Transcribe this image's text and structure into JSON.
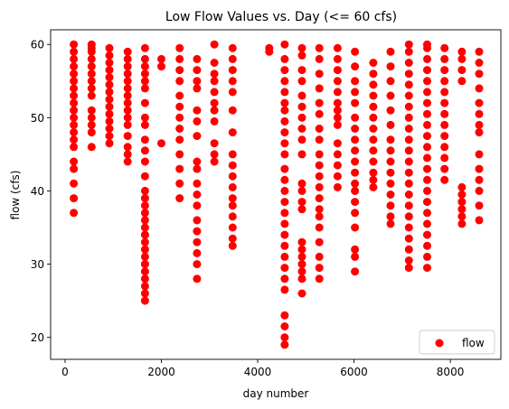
{
  "chart_data": {
    "type": "scatter",
    "title": "Low Flow Values vs. Day (<= 60 cfs)",
    "xlabel": "day number",
    "ylabel": "flow (cfs)",
    "xlim": [
      -300,
      9050
    ],
    "ylim": [
      17,
      62
    ],
    "x_ticks": [
      0,
      2000,
      4000,
      6000,
      8000
    ],
    "x_tick_labels": [
      "0",
      "2000",
      "4000",
      "6000",
      "8000"
    ],
    "y_ticks": [
      20,
      30,
      40,
      50,
      60
    ],
    "y_tick_labels": [
      "20",
      "30",
      "40",
      "50",
      "60"
    ],
    "grid": false,
    "legend": {
      "placement": "lower-right",
      "entries": [
        "flow"
      ]
    },
    "marker_color": "#ff0000",
    "series": [
      {
        "name": "flow",
        "columns": [
          {
            "x": 180,
            "y": [
              37,
              39,
              41,
              43,
              44,
              46,
              47,
              48,
              49,
              50,
              51,
              52,
              53,
              54,
              55,
              56,
              57,
              58,
              59,
              60
            ]
          },
          {
            "x": 550,
            "y": [
              46,
              48,
              49,
              50,
              51,
              53,
              54,
              55,
              56,
              57,
              58,
              59,
              59.5,
              60
            ]
          },
          {
            "x": 920,
            "y": [
              46.5,
              47.5,
              48.5,
              49.5,
              50.5,
              51.5,
              52.5,
              53.5,
              54.5,
              55.5,
              56.5,
              57.5,
              58.5,
              59.5
            ]
          },
          {
            "x": 1300,
            "y": [
              44,
              45,
              46,
              47.5,
              49,
              50,
              51,
              52,
              53,
              54,
              55,
              56,
              57,
              58,
              59
            ]
          },
          {
            "x": 1660,
            "y": [
              25,
              26,
              27,
              28,
              29,
              30,
              31,
              32,
              33,
              34,
              35,
              36,
              37,
              38,
              39,
              40,
              42,
              44,
              45.5,
              47,
              49,
              50,
              52,
              54,
              55,
              56,
              57,
              58,
              59.5
            ]
          },
          {
            "x": 2000,
            "y": [
              46.5,
              57,
              58
            ]
          },
          {
            "x": 2380,
            "y": [
              39,
              41,
              43,
              45,
              47,
              48.5,
              50,
              51.5,
              53,
              55,
              56.5,
              58,
              59.5
            ]
          },
          {
            "x": 2740,
            "y": [
              28,
              30,
              31.5,
              33,
              34.5,
              36,
              38,
              39.5,
              41,
              43,
              44,
              47.5,
              49.5,
              51,
              54,
              55,
              56.5,
              58
            ]
          },
          {
            "x": 3100,
            "y": [
              44,
              45,
              46.5,
              49.5,
              51,
              52,
              53.5,
              55,
              56,
              57.5,
              60
            ]
          },
          {
            "x": 3480,
            "y": [
              32.5,
              33.5,
              35,
              36.5,
              38,
              39,
              40.5,
              42,
              43.5,
              45,
              48,
              51,
              53.5,
              55,
              56.5,
              58,
              59.5
            ]
          },
          {
            "x": 4240,
            "y": [
              59,
              59.5
            ]
          },
          {
            "x": 4560,
            "y": [
              19,
              20,
              21.5,
              23,
              26.5,
              28,
              29.5,
              31,
              32.5,
              34,
              35.5,
              37,
              38.5,
              40,
              41.5,
              43,
              45,
              46.5,
              48,
              49.5,
              51,
              52,
              53.5,
              55,
              56.5,
              58,
              60
            ]
          },
          {
            "x": 4920,
            "y": [
              26,
              28,
              29,
              30,
              31,
              32,
              33,
              37.5,
              38.5,
              40,
              41,
              45,
              47,
              48.5,
              50,
              51.5,
              53,
              55,
              56.5,
              58.5,
              59.5
            ]
          },
          {
            "x": 5280,
            "y": [
              28,
              29.5,
              31,
              33,
              35,
              36.5,
              37.5,
              39,
              40.5,
              42,
              43.5,
              45,
              47,
              48.5,
              50.5,
              52,
              54,
              56,
              58,
              59.5
            ]
          },
          {
            "x": 5660,
            "y": [
              40.5,
              42,
              43.5,
              45,
              46.5,
              49,
              50,
              51,
              52,
              53.5,
              55,
              56.5,
              58,
              59.5
            ]
          },
          {
            "x": 6020,
            "y": [
              29,
              31,
              32,
              35,
              37,
              38.5,
              40,
              41,
              42.5,
              44,
              45.5,
              47,
              48.5,
              50,
              52,
              53.5,
              55,
              57,
              59
            ]
          },
          {
            "x": 6400,
            "y": [
              40.5,
              41.5,
              42.5,
              44,
              45.5,
              47,
              48.5,
              50,
              51.5,
              53,
              54.5,
              56,
              57.5
            ]
          },
          {
            "x": 6760,
            "y": [
              35.5,
              36.5,
              38,
              39.5,
              41,
              42.5,
              44,
              45.5,
              47,
              49,
              51,
              53,
              55,
              57,
              59
            ]
          },
          {
            "x": 7140,
            "y": [
              29.5,
              30.5,
              32,
              33.5,
              35,
              36.5,
              38,
              39.5,
              41,
              42.5,
              44,
              45.5,
              47,
              48.5,
              50,
              51.5,
              53,
              54.5,
              56,
              57.5,
              59,
              60
            ]
          },
          {
            "x": 7520,
            "y": [
              29.5,
              31,
              32.5,
              34,
              35.5,
              37,
              38.5,
              40,
              41.5,
              43,
              44.5,
              46,
              47.5,
              49,
              50.5,
              52,
              53.5,
              55,
              56.5,
              58,
              59.5,
              60
            ]
          },
          {
            "x": 7880,
            "y": [
              41.5,
              43,
              44.5,
              46,
              47.5,
              49,
              50.5,
              52,
              53.5,
              55,
              56.5,
              58,
              59.5
            ]
          },
          {
            "x": 8240,
            "y": [
              35.5,
              36.5,
              37.5,
              38.5,
              39.5,
              40.5,
              55,
              56.5,
              58,
              59
            ]
          },
          {
            "x": 8600,
            "y": [
              36,
              38,
              40,
              41.5,
              43,
              45,
              48,
              49,
              50.5,
              52,
              54,
              56,
              57.5,
              59
            ]
          }
        ]
      }
    ]
  }
}
